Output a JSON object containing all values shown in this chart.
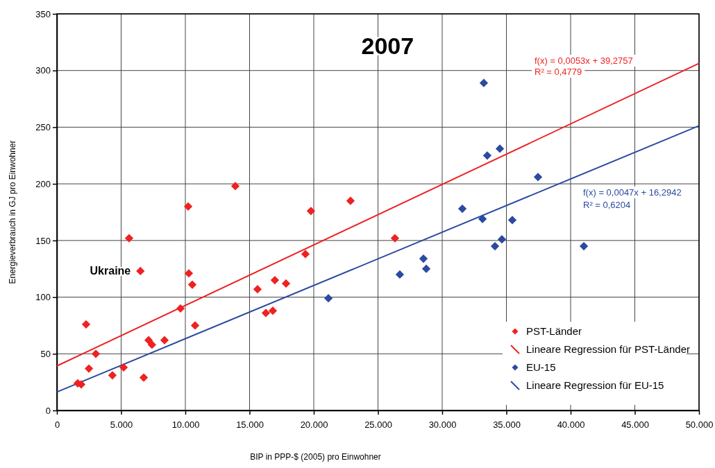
{
  "chart_data": {
    "type": "scatter",
    "title": "2007",
    "xlabel": "BIP in PPP-$ (2005) pro Einwohner",
    "ylabel": "Energieverbrauch in  GJ pro Einwohner",
    "xlim": [
      0,
      50000
    ],
    "ylim": [
      0,
      350
    ],
    "xticks": [
      0,
      {
        "value": 5000,
        "label": "5.000"
      },
      {
        "value": 10000,
        "label": "10.000"
      },
      {
        "value": 15000,
        "label": "15.000"
      },
      {
        "value": 20000,
        "label": "20.000"
      },
      {
        "value": 25000,
        "label": "25.000"
      },
      {
        "value": 30000,
        "label": "30.000"
      },
      {
        "value": 35000,
        "label": "35.000"
      },
      {
        "value": 40000,
        "label": "40.000"
      },
      {
        "value": 45000,
        "label": "45.000"
      },
      {
        "value": 50000,
        "label": "50.000"
      }
    ],
    "yticks": [
      0,
      50,
      100,
      150,
      200,
      250,
      300,
      350
    ],
    "grid": true,
    "legend": "bottom right",
    "series": [
      {
        "name": "PST-Länder",
        "marker": "diamond",
        "color": "#ee2222",
        "x": [
          1620,
          1890,
          2270,
          2490,
          3030,
          4320,
          5190,
          5620,
          6760,
          6500,
          7140,
          7400,
          8380,
          9620,
          10220,
          10270,
          10540,
          10760,
          13890,
          15620,
          16270,
          16810,
          16970,
          17840,
          19350,
          19780,
          22860,
          26320
        ],
        "values": [
          24,
          23,
          76,
          37,
          50,
          31,
          38,
          152,
          29,
          123,
          62,
          58,
          62,
          90,
          180,
          121,
          111,
          75,
          198,
          107,
          86,
          88,
          115,
          112,
          138,
          176,
          185,
          152
        ]
      },
      {
        "name": "Lineare Regression für PST-Länder",
        "type": "line",
        "color": "#ee2222",
        "x": [
          0,
          50000
        ],
        "values": [
          39.3,
          306.3
        ]
      },
      {
        "name": "EU-15",
        "marker": "diamond",
        "color": "#2b4aa0",
        "x": [
          21140,
          26700,
          28540,
          28760,
          31570,
          33240,
          33140,
          33510,
          34110,
          34490,
          34650,
          35460,
          37460,
          41030
        ],
        "values": [
          99,
          120,
          134,
          125,
          178,
          289,
          169,
          225,
          145,
          231,
          151,
          168,
          206,
          145
        ]
      },
      {
        "name": "Lineare Regression für EU-15",
        "type": "line",
        "color": "#2b4aa0",
        "x": [
          0,
          50000
        ],
        "values": [
          16.3,
          251.3
        ]
      }
    ],
    "annotations": [
      {
        "text": "Ukraine",
        "x": 6500,
        "y": 123
      },
      "f(x) = 0,0053x + 39,2757",
      "R² = 0,4779",
      "f(x) = 0,0047x + 16,2942",
      "R² = 0,6204"
    ]
  }
}
